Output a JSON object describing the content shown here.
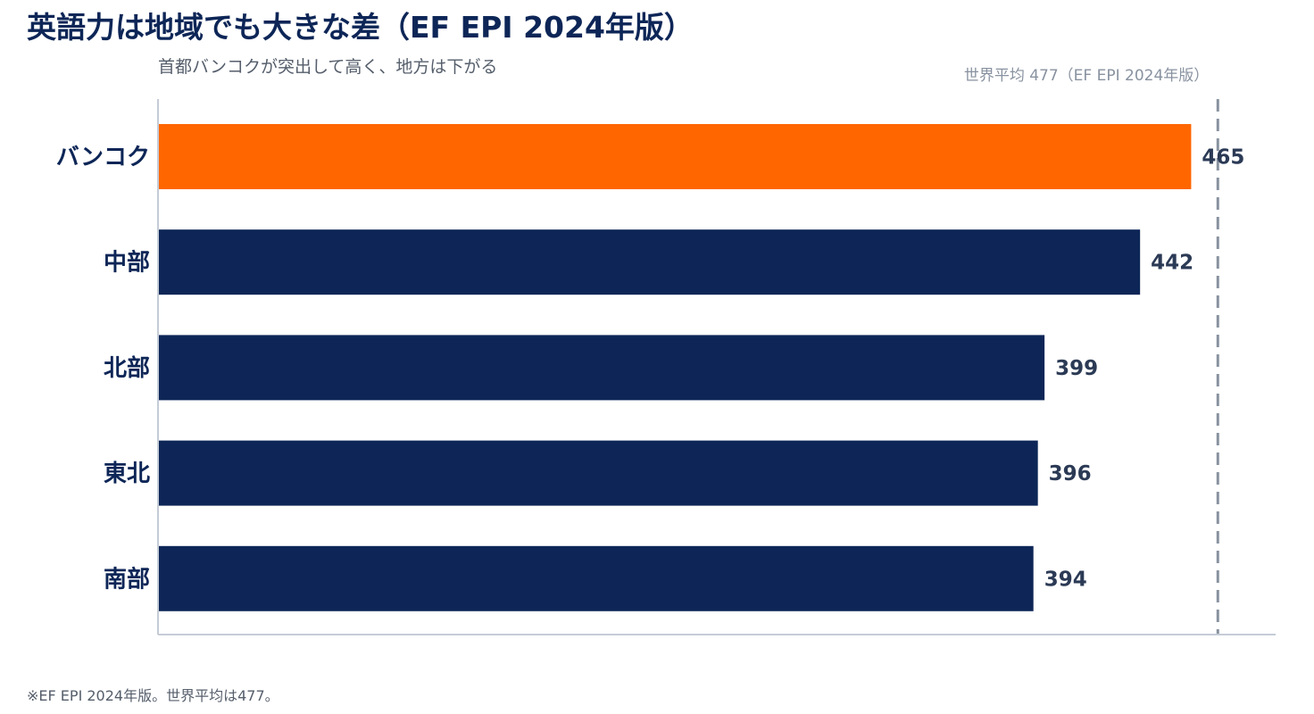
{
  "header": {
    "title": "英語力は地域でも大きな差（EF EPI 2024年版）",
    "subtitle": "首都バンコクが突出して高く、地方は下がる"
  },
  "footnote": "※EF EPI 2024年版。世界平均は477。",
  "chart_data": {
    "type": "bar",
    "orientation": "horizontal",
    "categories": [
      "バンコク",
      "中部",
      "北部",
      "東北",
      "南部"
    ],
    "values": [
      465,
      442,
      399,
      396,
      394
    ],
    "value_labels": [
      "465",
      "442",
      "399",
      "396",
      "394"
    ],
    "highlight_category": "バンコク",
    "reference_line": {
      "value": 477,
      "label": "世界平均 477（EF EPI 2024年版）",
      "style": "dashed"
    },
    "xlim": [
      0,
      503
    ],
    "grid": false,
    "colors": {
      "highlight": "#ff6600",
      "default": "#0d2657",
      "reference": "#8892a0",
      "axis": "#c5ccd6"
    }
  }
}
